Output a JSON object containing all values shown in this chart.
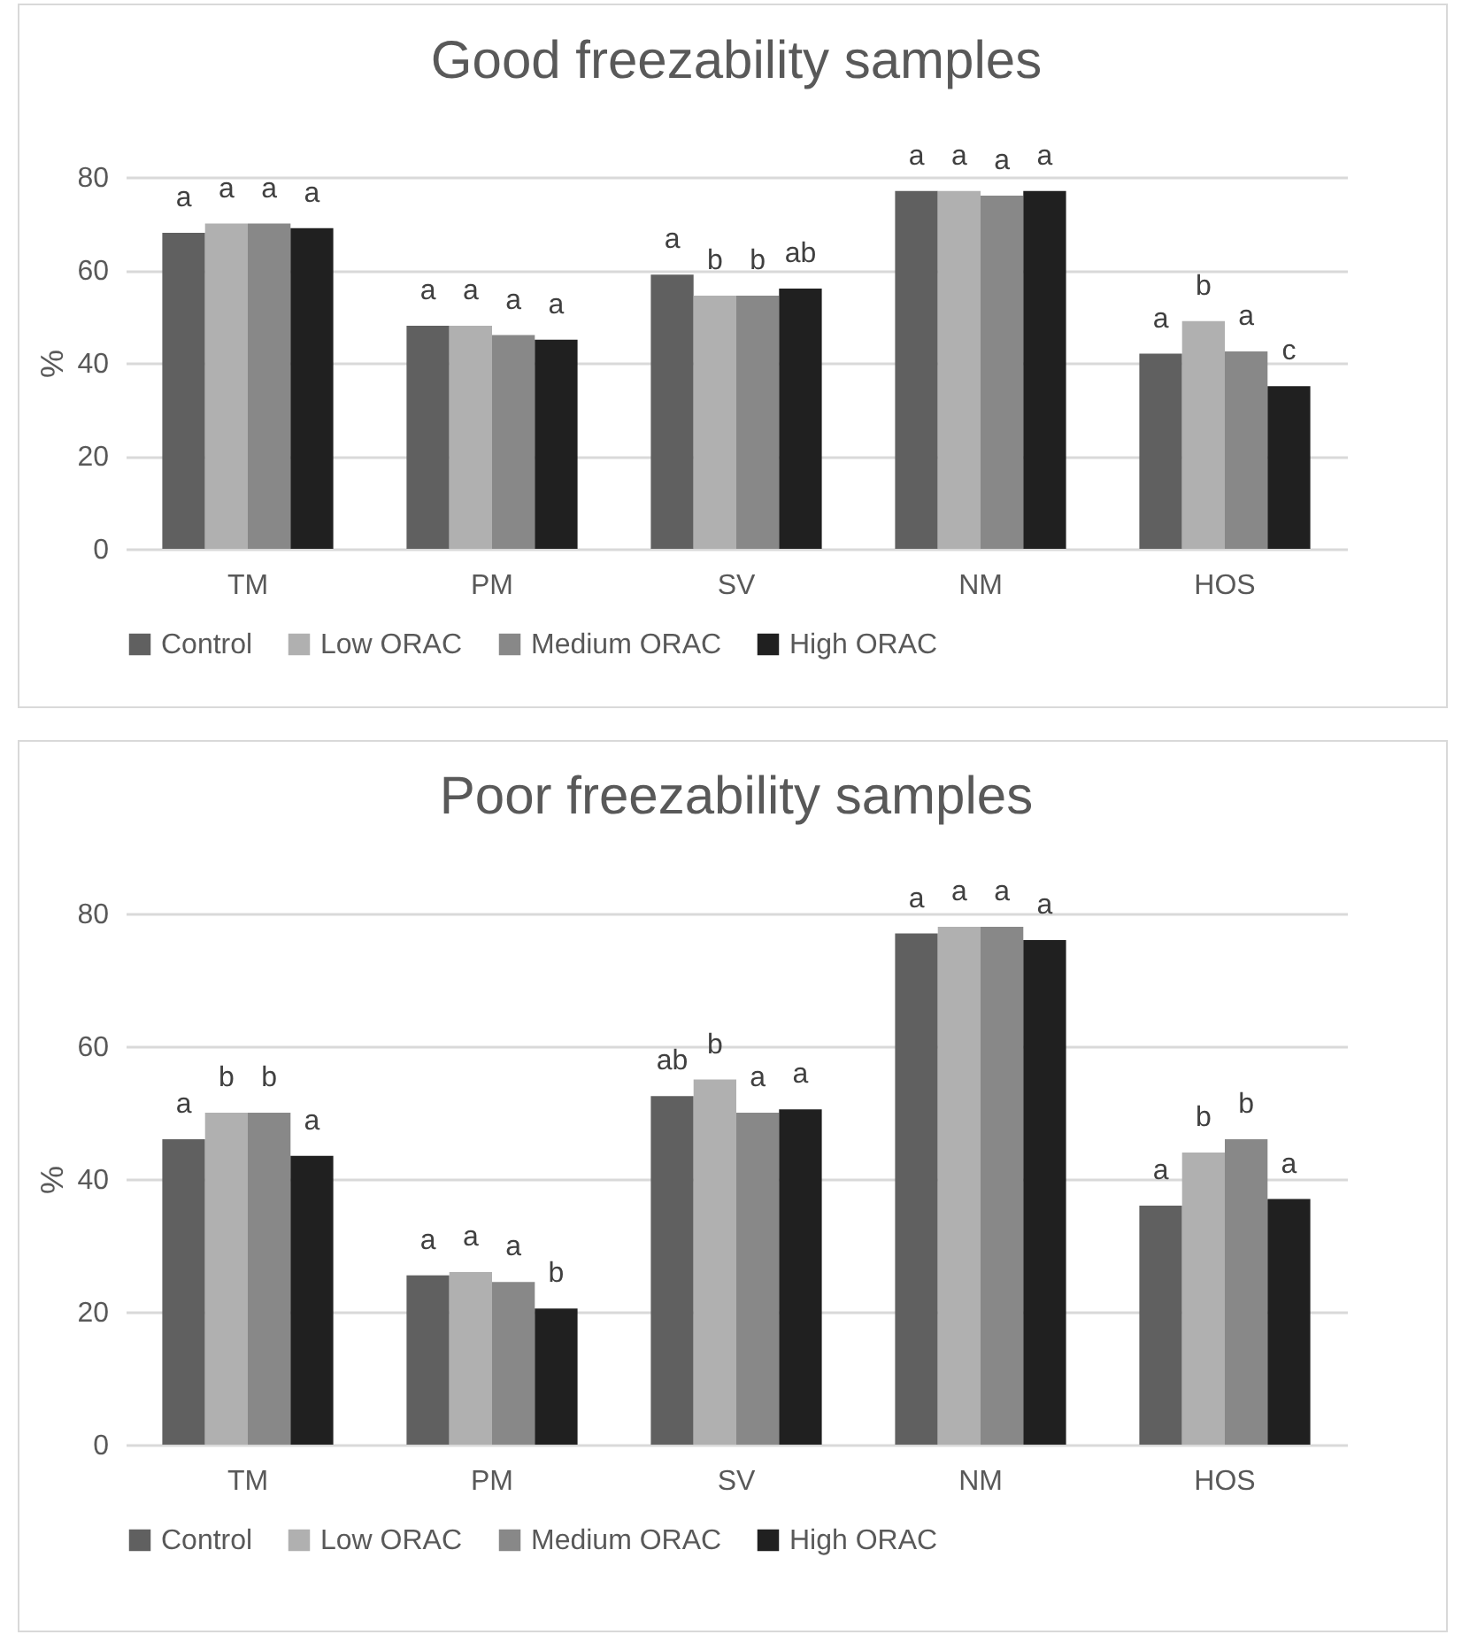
{
  "chart_data": [
    {
      "type": "bar",
      "title": "Good freezability samples",
      "ylabel": "%",
      "categories": [
        "TM",
        "PM",
        "SV",
        "NM",
        "HOS"
      ],
      "ylim": [
        0,
        80
      ],
      "yticks": [
        0,
        20,
        40,
        60,
        80
      ],
      "grid": "y",
      "legend": "bottom",
      "series": [
        {
          "name": "Control",
          "color": "#606060",
          "values": [
            68,
            48,
            59,
            77,
            42
          ],
          "value_labels": [
            "a",
            "a",
            "a",
            "a",
            "a"
          ]
        },
        {
          "name": "Low ORAC",
          "color": "#b0b0b0",
          "values": [
            70,
            48,
            54.5,
            77,
            49
          ],
          "value_labels": [
            "a",
            "a",
            "b",
            "a",
            "b"
          ]
        },
        {
          "name": "Medium ORAC",
          "color": "#888888",
          "values": [
            70,
            46,
            54.5,
            76,
            42.5
          ],
          "value_labels": [
            "a",
            "a",
            "b",
            "a",
            "a"
          ]
        },
        {
          "name": "High ORAC",
          "color": "#202020",
          "values": [
            69,
            45,
            56,
            77,
            35
          ],
          "value_labels": [
            "a",
            "a",
            "ab",
            "a",
            "c"
          ]
        }
      ]
    },
    {
      "type": "bar",
      "title": "Poor freezability samples",
      "ylabel": "%",
      "categories": [
        "TM",
        "PM",
        "SV",
        "NM",
        "HOS"
      ],
      "ylim": [
        0,
        80
      ],
      "yticks": [
        0,
        20,
        40,
        60,
        80
      ],
      "grid": "y",
      "legend": "bottom",
      "series": [
        {
          "name": "Control",
          "color": "#606060",
          "values": [
            46,
            25.5,
            52.5,
            77,
            36
          ],
          "value_labels": [
            "a",
            "a",
            "ab",
            "a",
            "a"
          ]
        },
        {
          "name": "Low ORAC",
          "color": "#b0b0b0",
          "values": [
            50,
            26,
            55,
            78,
            44
          ],
          "value_labels": [
            "b",
            "a",
            "b",
            "a",
            "b"
          ]
        },
        {
          "name": "Medium ORAC",
          "color": "#888888",
          "values": [
            50,
            24.5,
            50,
            78,
            46
          ],
          "value_labels": [
            "b",
            "a",
            "a",
            "a",
            "b"
          ]
        },
        {
          "name": "High ORAC",
          "color": "#202020",
          "values": [
            43.5,
            20.5,
            50.5,
            76,
            37
          ],
          "value_labels": [
            "a",
            "b",
            "a",
            "a",
            "a"
          ]
        }
      ]
    }
  ]
}
